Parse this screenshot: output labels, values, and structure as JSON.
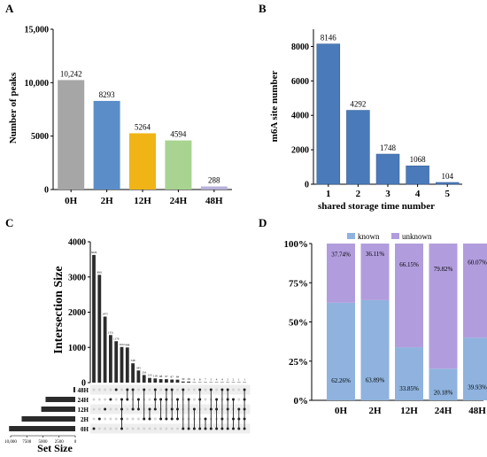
{
  "panels": {
    "a": "A",
    "b": "B",
    "c": "C",
    "d": "D"
  },
  "chart_data": [
    {
      "panel": "A",
      "type": "bar",
      "ylabel": "Number of peaks",
      "ylim": [
        0,
        15000
      ],
      "yticks": [
        "0",
        "5000",
        "10,000",
        "15,000"
      ],
      "categories": [
        "0H",
        "2H",
        "12H",
        "24H",
        "48H"
      ],
      "values": [
        10242,
        8293,
        5264,
        4594,
        288
      ],
      "value_labels": [
        "10,242",
        "8293",
        "5264",
        "4594",
        "288"
      ],
      "colors": [
        "#a6a6a6",
        "#5b8ec8",
        "#f0b416",
        "#a8d391",
        "#b7b1dc"
      ]
    },
    {
      "panel": "B",
      "type": "bar",
      "ylabel": "m6A site number",
      "xlabel": "shared storage time number",
      "ylim": [
        0,
        9000
      ],
      "yticks": [
        "0",
        "2000",
        "4000",
        "6000",
        "8000"
      ],
      "categories": [
        "1",
        "2",
        "3",
        "4",
        "5"
      ],
      "values": [
        8146,
        4292,
        1748,
        1068,
        104
      ],
      "value_labels": [
        "8146",
        "4292",
        "1748",
        "1068",
        "104"
      ],
      "color": "#4a7ab9"
    },
    {
      "panel": "C",
      "type": "upset",
      "ylabel": "Intersection Size",
      "set_size_label": "Set Size",
      "ylim": [
        0,
        4000
      ],
      "yticks": [
        "0",
        "1000",
        "2000",
        "3000",
        "4000"
      ],
      "set_size_ticks": [
        "10,000",
        "7500",
        "5000",
        "2500",
        "0"
      ],
      "sets": [
        "48H",
        "24H",
        "12H",
        "2H",
        "0H"
      ],
      "set_sizes": [
        288,
        4594,
        5264,
        8293,
        10242
      ],
      "intersections": [
        3626,
        3061,
        1875,
        1351,
        1176,
        1012,
        998,
        548,
        345,
        216,
        133,
        118,
        98,
        97,
        87,
        84,
        30,
        29,
        9,
        8,
        7,
        5,
        4,
        4,
        2,
        2,
        1,
        1
      ],
      "intersection_labels": [
        "3626",
        "3061",
        "1875",
        "1351",
        "1176",
        "1012",
        "998",
        "548",
        "345",
        "216",
        "133",
        "118",
        "98",
        "97",
        "87",
        "84",
        "30",
        "29",
        "9",
        "8",
        "7",
        "5",
        "4",
        "4",
        "2",
        "2",
        "1",
        "1"
      ],
      "matrix": [
        [
          4
        ],
        [
          3
        ],
        [
          2
        ],
        [
          1
        ],
        [
          0
        ],
        [
          1,
          2,
          3,
          4
        ],
        [
          0,
          1
        ],
        [
          0,
          2
        ],
        [
          1,
          2
        ],
        [
          0,
          3
        ],
        [
          2,
          3
        ],
        [
          0,
          1,
          2
        ],
        [
          1,
          3
        ],
        [
          0,
          1,
          3
        ],
        [
          0,
          2,
          3
        ],
        [
          1,
          2,
          3
        ],
        [
          0,
          4
        ],
        [
          1,
          4
        ],
        [
          2,
          4
        ],
        [
          0,
          1,
          4
        ],
        [
          3,
          4
        ],
        [
          0,
          2,
          4
        ],
        [
          1,
          2,
          4
        ],
        [
          0,
          3,
          4
        ],
        [
          0,
          1,
          2,
          4
        ],
        [
          1,
          3,
          4
        ],
        [
          2,
          3,
          4
        ],
        [
          0,
          1,
          2,
          3,
          4
        ]
      ]
    },
    {
      "panel": "D",
      "type": "bar",
      "stacked": true,
      "ylim": [
        0,
        100
      ],
      "yticks": [
        "0%",
        "25%",
        "50%",
        "75%",
        "100%"
      ],
      "categories": [
        "0H",
        "2H",
        "12H",
        "24H",
        "48H"
      ],
      "legend": "top",
      "series": [
        {
          "name": "known",
          "color": "#8fb3de",
          "values": [
            62.26,
            63.89,
            33.85,
            20.18,
            39.93
          ],
          "labels": [
            "62.26%",
            "63.89%",
            "33.85%",
            "20.18%",
            "39.93%"
          ]
        },
        {
          "name": "unknown",
          "color": "#b19ddd",
          "values": [
            37.74,
            36.11,
            66.15,
            79.82,
            60.07
          ],
          "labels": [
            "37.74%",
            "36.11%",
            "66.15%",
            "79.82%",
            "60.07%"
          ]
        }
      ]
    }
  ]
}
